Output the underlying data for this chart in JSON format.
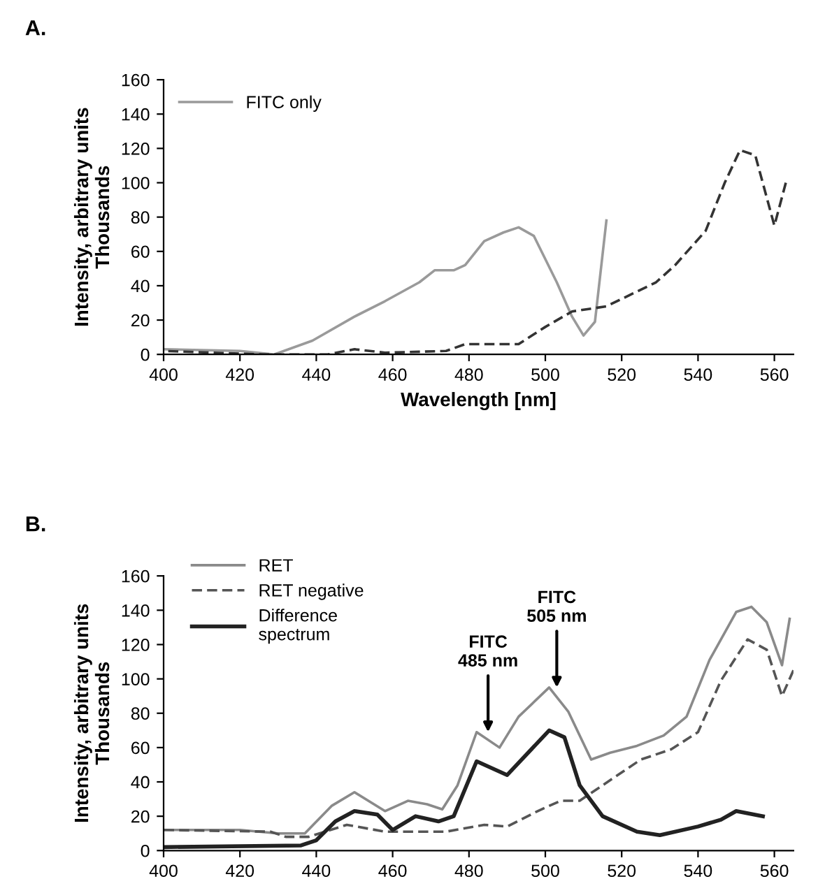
{
  "chart_data": [
    {
      "type": "line",
      "title": "A.",
      "xlabel": "Wavelength [nm]",
      "ylabel": "Intensity, arbitrary units\nThousands",
      "xlim": [
        400,
        565
      ],
      "ylim": [
        0,
        160
      ],
      "xticks": [
        400,
        420,
        440,
        460,
        480,
        500,
        520,
        540,
        560
      ],
      "yticks": [
        0,
        20,
        40,
        60,
        80,
        100,
        120,
        140,
        160
      ],
      "grid": false,
      "legend": "top left",
      "series": [
        {
          "name": "FITC only",
          "color": "#9a9a9a",
          "line_style": "solid",
          "x": [
            400,
            420,
            429,
            439,
            450,
            458,
            467,
            471,
            476,
            479,
            484,
            489,
            493,
            497,
            503,
            507,
            510,
            513,
            516
          ],
          "values": [
            3,
            2,
            0,
            8,
            22,
            31,
            42,
            49,
            49,
            52,
            66,
            71,
            74,
            69,
            42,
            22,
            11,
            19,
            78
          ]
        },
        {
          "color": "#333333",
          "line_style": "dashed",
          "x": [
            400,
            426,
            432,
            443,
            450,
            458,
            474,
            479,
            493,
            500,
            507,
            516,
            529,
            534,
            542,
            547,
            551,
            555,
            560,
            563
          ],
          "values": [
            2,
            0,
            0,
            0,
            3,
            1,
            2,
            6,
            6,
            16,
            25,
            28,
            42,
            52,
            72,
            100,
            119,
            116,
            75,
            100
          ]
        }
      ]
    },
    {
      "type": "line",
      "title": "B.",
      "ylabel": "Intensity, arbitrary units\nThousands",
      "xlim": [
        400,
        565
      ],
      "ylim": [
        0,
        160
      ],
      "xticks": [
        400,
        420,
        440,
        460,
        480,
        500,
        520,
        540,
        560
      ],
      "yticks": [
        0,
        20,
        40,
        60,
        80,
        100,
        120,
        140,
        160
      ],
      "grid": false,
      "legend": "top left",
      "annotations": [
        {
          "text": "FITC\n485 nm",
          "x": 485,
          "y": 69
        },
        {
          "text": "FITC\n505 nm",
          "x": 503,
          "y": 95
        }
      ],
      "series": [
        {
          "name": "RET",
          "color": "#8a8a8a",
          "line_style": "solid",
          "x": [
            400,
            420,
            430,
            437,
            444,
            450,
            458,
            464,
            469,
            473,
            477,
            482,
            488,
            493,
            501,
            506,
            512,
            517,
            524,
            531,
            537,
            543,
            550,
            554,
            558,
            562,
            564
          ],
          "values": [
            12,
            12,
            10,
            10,
            26,
            34,
            23,
            29,
            27,
            24,
            38,
            69,
            60,
            78,
            95,
            81,
            53,
            57,
            61,
            67,
            78,
            111,
            139,
            142,
            133,
            108,
            135
          ]
        },
        {
          "name": "RET negative",
          "color": "#555555",
          "line_style": "dashed",
          "x": [
            400,
            428,
            432,
            438,
            448,
            458,
            468,
            474,
            484,
            490,
            498,
            504,
            509,
            517,
            525,
            533,
            540,
            546,
            553,
            558,
            562,
            565
          ],
          "values": [
            12,
            11,
            8,
            8,
            15,
            11,
            11,
            11,
            15,
            14,
            23,
            29,
            29,
            41,
            53,
            59,
            69,
            99,
            123,
            117,
            90,
            105
          ]
        },
        {
          "name": "Difference\nspectrum",
          "color": "#222222",
          "line_style": "solid",
          "x": [
            400,
            436,
            440,
            445,
            450,
            456,
            460,
            466,
            472,
            476,
            482,
            490,
            501,
            505,
            509,
            515,
            524,
            530,
            540,
            546,
            550,
            557
          ],
          "values": [
            2,
            3,
            6,
            17,
            23,
            21,
            12,
            20,
            17,
            20,
            52,
            44,
            70,
            66,
            38,
            20,
            11,
            9,
            14,
            18,
            23,
            20
          ]
        }
      ]
    }
  ]
}
